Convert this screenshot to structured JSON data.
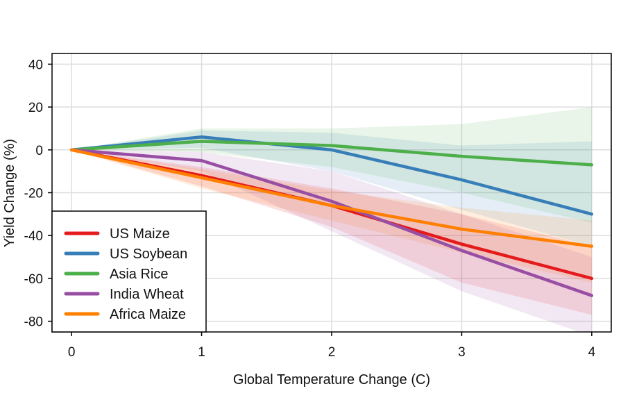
{
  "chart_data": {
    "type": "line",
    "title": "",
    "xlabel": "Global Temperature Change (C)",
    "ylabel": "Yield Change (%)",
    "x": [
      0,
      1,
      2,
      3,
      4
    ],
    "xlim": [
      -0.15,
      4.15
    ],
    "ylim": [
      -85,
      45
    ],
    "xticks": [
      0,
      1,
      2,
      3,
      4
    ],
    "yticks": [
      40,
      20,
      0,
      -20,
      -40,
      -60,
      -80
    ],
    "grid": true,
    "legend_position": "bottom-left",
    "series": [
      {
        "name": "US Maize",
        "color": "#e41a1c",
        "values": [
          0,
          -12,
          -26,
          -44,
          -60
        ],
        "lower": [
          0,
          -17,
          -36,
          -62,
          -77
        ],
        "upper": [
          0,
          -8,
          -18,
          -30,
          -45
        ]
      },
      {
        "name": "US Soybean",
        "color": "#377eb8",
        "values": [
          0,
          6,
          0,
          -14,
          -30
        ],
        "lower": [
          0,
          1,
          -10,
          -28,
          -45
        ],
        "upper": [
          0,
          9,
          8,
          2,
          4
        ]
      },
      {
        "name": "Asia Rice",
        "color": "#4daf4a",
        "values": [
          0,
          4,
          2,
          -3,
          -7
        ],
        "lower": [
          0,
          -1,
          -8,
          -20,
          -34
        ],
        "upper": [
          0,
          10,
          10,
          12,
          20
        ]
      },
      {
        "name": "India Wheat",
        "color": "#984ea3",
        "values": [
          0,
          -5,
          -24,
          -47,
          -68
        ],
        "lower": [
          0,
          -10,
          -38,
          -66,
          -87
        ],
        "upper": [
          0,
          -1,
          -10,
          -30,
          -50
        ]
      },
      {
        "name": "Africa Maize",
        "color": "#ff7f00",
        "values": [
          0,
          -13,
          -26,
          -37,
          -45
        ],
        "lower": [
          0,
          -18,
          -33,
          -48,
          -62
        ],
        "upper": [
          0,
          -9,
          -19,
          -27,
          -33
        ]
      }
    ]
  }
}
